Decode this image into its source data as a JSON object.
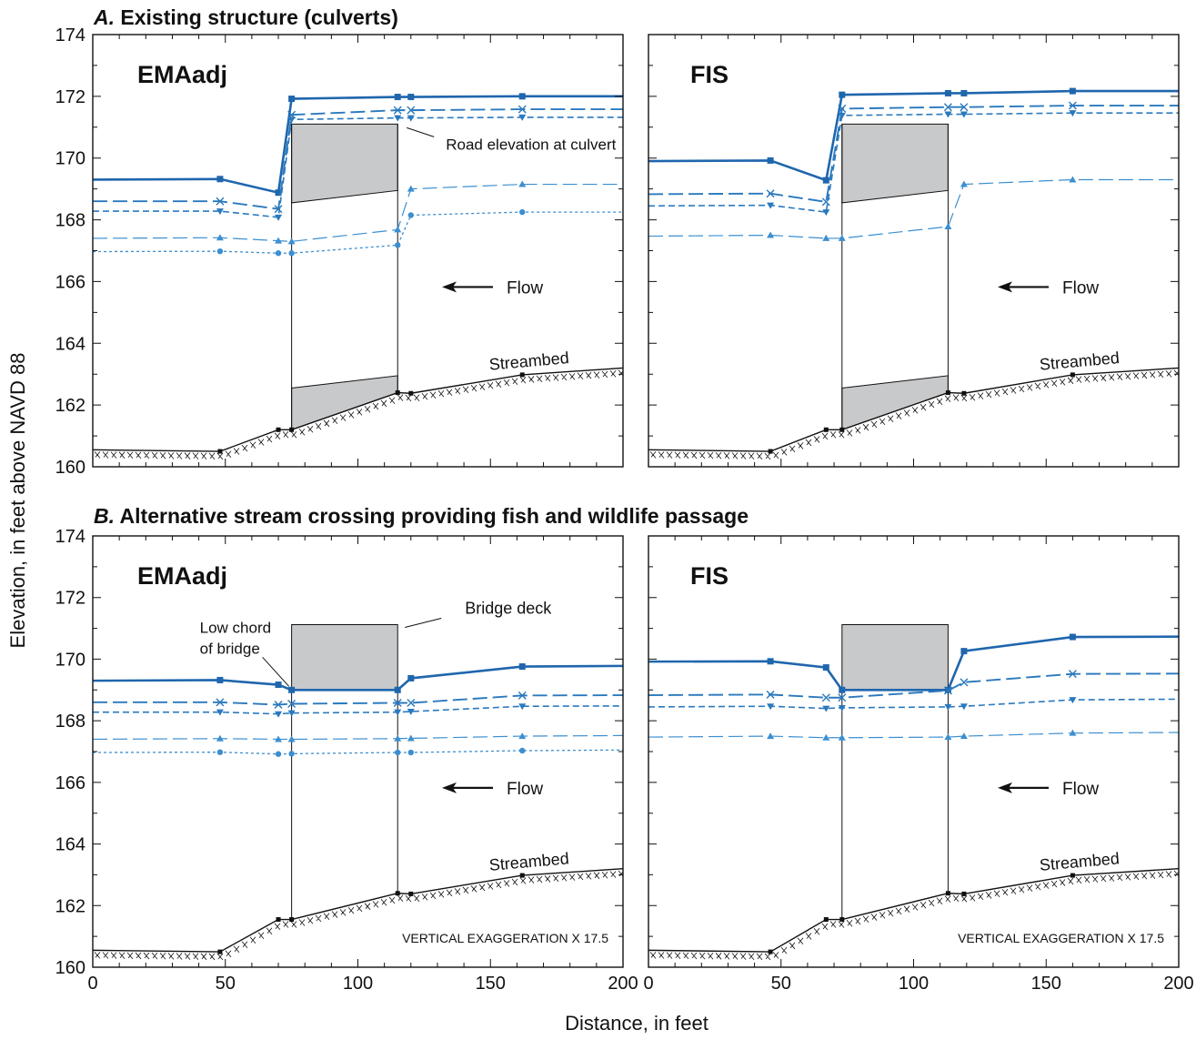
{
  "figure": {
    "ylabel": "Elevation, in feet above NAVD 88",
    "xlabel": "Distance, in feet",
    "panel_a_letter": "A.",
    "panel_a_title": " Existing structure (culverts)",
    "panel_b_letter": "B.",
    "panel_b_title": " Alternative stream crossing providing fish and wildlife passage",
    "colors": {
      "dark": "#1f66ad",
      "mid": "#2a79be",
      "light": "#3c8fd0",
      "structure_fill": "#c8c9cb",
      "ink": "#111111"
    }
  },
  "chart_data": [
    {
      "type": "line",
      "panel": "A",
      "label": "EMAadj",
      "structure": "culvert",
      "xlim": [
        0,
        200
      ],
      "ylim": [
        160,
        174
      ],
      "xticks": [
        0,
        50,
        100,
        150,
        200
      ],
      "yticks": [
        160,
        162,
        164,
        166,
        168,
        170,
        172,
        174
      ],
      "road": {
        "x0": 75,
        "x1": 115,
        "top": 171.1
      },
      "culvert": {
        "crown": [
          [
            75,
            168.55
          ],
          [
            115,
            168.95
          ]
        ],
        "invert": [
          [
            75,
            162.55
          ],
          [
            115,
            162.95
          ]
        ]
      },
      "streambed": {
        "label": "Streambed",
        "x": [
          0,
          48,
          70,
          75,
          115,
          120,
          162,
          200
        ],
        "y": [
          160.55,
          160.5,
          161.2,
          161.2,
          162.4,
          162.38,
          162.98,
          163.2
        ]
      },
      "flow_label": "Flow",
      "callouts": [
        "Road elevation at culvert"
      ],
      "series": [
        {
          "style": "solid",
          "marker": "square",
          "x": [
            0,
            48,
            70,
            75,
            115,
            120,
            162,
            200
          ],
          "y": [
            169.3,
            169.32,
            168.88,
            171.92,
            171.98,
            171.98,
            172.0,
            172.0
          ]
        },
        {
          "style": "longdash",
          "marker": "x",
          "x": [
            0,
            48,
            70,
            75,
            115,
            120,
            162,
            200
          ],
          "y": [
            168.6,
            168.6,
            168.35,
            171.4,
            171.55,
            171.55,
            171.58,
            171.58
          ]
        },
        {
          "style": "dash",
          "marker": "tri-down",
          "x": [
            0,
            48,
            70,
            75,
            115,
            120,
            162,
            200
          ],
          "y": [
            168.28,
            168.28,
            168.08,
            171.25,
            171.3,
            171.3,
            171.32,
            171.32
          ]
        },
        {
          "style": "longdash-thin",
          "marker": "tri-up",
          "x": [
            0,
            48,
            70,
            75,
            115,
            120,
            162,
            200
          ],
          "y": [
            167.4,
            167.42,
            167.32,
            167.3,
            167.68,
            169.0,
            169.15,
            169.15
          ]
        },
        {
          "style": "dot",
          "marker": "circle",
          "x": [
            0,
            48,
            70,
            75,
            115,
            120,
            162,
            200
          ],
          "y": [
            166.97,
            166.98,
            166.92,
            166.92,
            167.18,
            168.15,
            168.25,
            168.25
          ]
        }
      ]
    },
    {
      "type": "line",
      "panel": "A",
      "label": "FIS",
      "structure": "culvert",
      "xlim": [
        0,
        200
      ],
      "ylim": [
        160,
        174
      ],
      "xticks": [
        0,
        50,
        100,
        150,
        200
      ],
      "yticks": [
        160,
        162,
        164,
        166,
        168,
        170,
        172,
        174
      ],
      "road": {
        "x0": 73,
        "x1": 113,
        "top": 171.1
      },
      "culvert": {
        "crown": [
          [
            73,
            168.55
          ],
          [
            113,
            168.95
          ]
        ],
        "invert": [
          [
            73,
            162.55
          ],
          [
            113,
            162.95
          ]
        ]
      },
      "streambed": {
        "label": "Streambed",
        "x": [
          0,
          46,
          67,
          73,
          113,
          119,
          160,
          200
        ],
        "y": [
          160.55,
          160.5,
          161.2,
          161.2,
          162.4,
          162.38,
          162.98,
          163.2
        ]
      },
      "flow_label": "Flow",
      "series": [
        {
          "style": "solid",
          "marker": "square",
          "x": [
            0,
            46,
            67,
            73,
            113,
            119,
            160,
            200
          ],
          "y": [
            169.9,
            169.92,
            169.28,
            172.05,
            172.1,
            172.1,
            172.17,
            172.17
          ]
        },
        {
          "style": "longdash",
          "marker": "x",
          "x": [
            0,
            46,
            67,
            73,
            113,
            119,
            160,
            200
          ],
          "y": [
            168.83,
            168.85,
            168.58,
            171.6,
            171.65,
            171.65,
            171.7,
            171.7
          ]
        },
        {
          "style": "dash",
          "marker": "tri-down",
          "x": [
            0,
            46,
            67,
            73,
            113,
            119,
            160,
            200
          ],
          "y": [
            168.45,
            168.47,
            168.25,
            171.38,
            171.42,
            171.42,
            171.46,
            171.46
          ]
        },
        {
          "style": "longdash-thin",
          "marker": "tri-up",
          "x": [
            0,
            46,
            67,
            73,
            113,
            119,
            160,
            200
          ],
          "y": [
            167.47,
            167.5,
            167.4,
            167.4,
            167.78,
            169.15,
            169.3,
            169.3
          ]
        }
      ]
    },
    {
      "type": "line",
      "panel": "B",
      "label": "EMAadj",
      "structure": "bridge",
      "xlim": [
        0,
        200
      ],
      "ylim": [
        160,
        174
      ],
      "xticks": [
        0,
        50,
        100,
        150,
        200
      ],
      "yticks": [
        160,
        162,
        164,
        166,
        168,
        170,
        172,
        174
      ],
      "deck": {
        "x0": 75,
        "x1": 115,
        "top": 171.12,
        "bottom": 169.0
      },
      "streambed": {
        "label": "Streambed",
        "x": [
          0,
          48,
          70,
          75,
          115,
          120,
          162,
          200
        ],
        "y": [
          160.55,
          160.5,
          161.55,
          161.55,
          162.4,
          162.38,
          162.98,
          163.2
        ]
      },
      "flow_label": "Flow",
      "callouts": [
        "Bridge deck",
        "Low chord",
        "of bridge"
      ],
      "exaggeration": "VERTICAL EXAGGERATION X 17.5",
      "series": [
        {
          "style": "solid",
          "marker": "square",
          "x": [
            0,
            48,
            70,
            75,
            115,
            120,
            162,
            200
          ],
          "y": [
            169.3,
            169.32,
            169.17,
            169.0,
            169.0,
            169.38,
            169.76,
            169.78
          ]
        },
        {
          "style": "longdash",
          "marker": "x",
          "x": [
            0,
            48,
            70,
            75,
            115,
            120,
            162,
            200
          ],
          "y": [
            168.6,
            168.6,
            168.52,
            168.55,
            168.58,
            168.58,
            168.82,
            168.83
          ]
        },
        {
          "style": "dash",
          "marker": "tri-down",
          "x": [
            0,
            48,
            70,
            75,
            115,
            120,
            162,
            200
          ],
          "y": [
            168.28,
            168.28,
            168.22,
            168.25,
            168.28,
            168.3,
            168.47,
            168.48
          ]
        },
        {
          "style": "longdash-thin",
          "marker": "tri-up",
          "x": [
            0,
            48,
            70,
            75,
            115,
            120,
            162,
            200
          ],
          "y": [
            167.4,
            167.42,
            167.4,
            167.4,
            167.42,
            167.43,
            167.5,
            167.52
          ]
        },
        {
          "style": "dot",
          "marker": "circle",
          "x": [
            0,
            48,
            70,
            75,
            115,
            120,
            162,
            200
          ],
          "y": [
            166.97,
            166.98,
            166.92,
            166.93,
            166.97,
            166.97,
            167.03,
            167.05
          ]
        }
      ]
    },
    {
      "type": "line",
      "panel": "B",
      "label": "FIS",
      "structure": "bridge",
      "xlim": [
        0,
        200
      ],
      "ylim": [
        160,
        174
      ],
      "xticks": [
        0,
        50,
        100,
        150,
        200
      ],
      "yticks": [
        160,
        162,
        164,
        166,
        168,
        170,
        172,
        174
      ],
      "deck": {
        "x0": 73,
        "x1": 113,
        "top": 171.12,
        "bottom": 169.0
      },
      "streambed": {
        "label": "Streambed",
        "x": [
          0,
          46,
          67,
          73,
          113,
          119,
          160,
          200
        ],
        "y": [
          160.55,
          160.5,
          161.55,
          161.55,
          162.4,
          162.38,
          162.98,
          163.2
        ]
      },
      "flow_label": "Flow",
      "exaggeration": "VERTICAL EXAGGERATION X 17.5",
      "series": [
        {
          "style": "solid",
          "marker": "square",
          "x": [
            0,
            46,
            67,
            73,
            113,
            119,
            160,
            200
          ],
          "y": [
            169.92,
            169.93,
            169.73,
            169.0,
            169.0,
            170.26,
            170.72,
            170.73
          ]
        },
        {
          "style": "longdash",
          "marker": "x",
          "x": [
            0,
            46,
            67,
            73,
            113,
            119,
            160,
            200
          ],
          "y": [
            168.83,
            168.85,
            168.75,
            168.75,
            168.98,
            169.25,
            169.52,
            169.53
          ]
        },
        {
          "style": "dash",
          "marker": "tri-down",
          "x": [
            0,
            46,
            67,
            73,
            113,
            119,
            160,
            200
          ],
          "y": [
            168.45,
            168.47,
            168.4,
            168.42,
            168.45,
            168.47,
            168.68,
            168.7
          ]
        },
        {
          "style": "longdash-thin",
          "marker": "tri-up",
          "x": [
            0,
            46,
            67,
            73,
            113,
            119,
            160,
            200
          ],
          "y": [
            167.47,
            167.5,
            167.45,
            167.45,
            167.47,
            167.5,
            167.6,
            167.62
          ]
        }
      ]
    }
  ]
}
